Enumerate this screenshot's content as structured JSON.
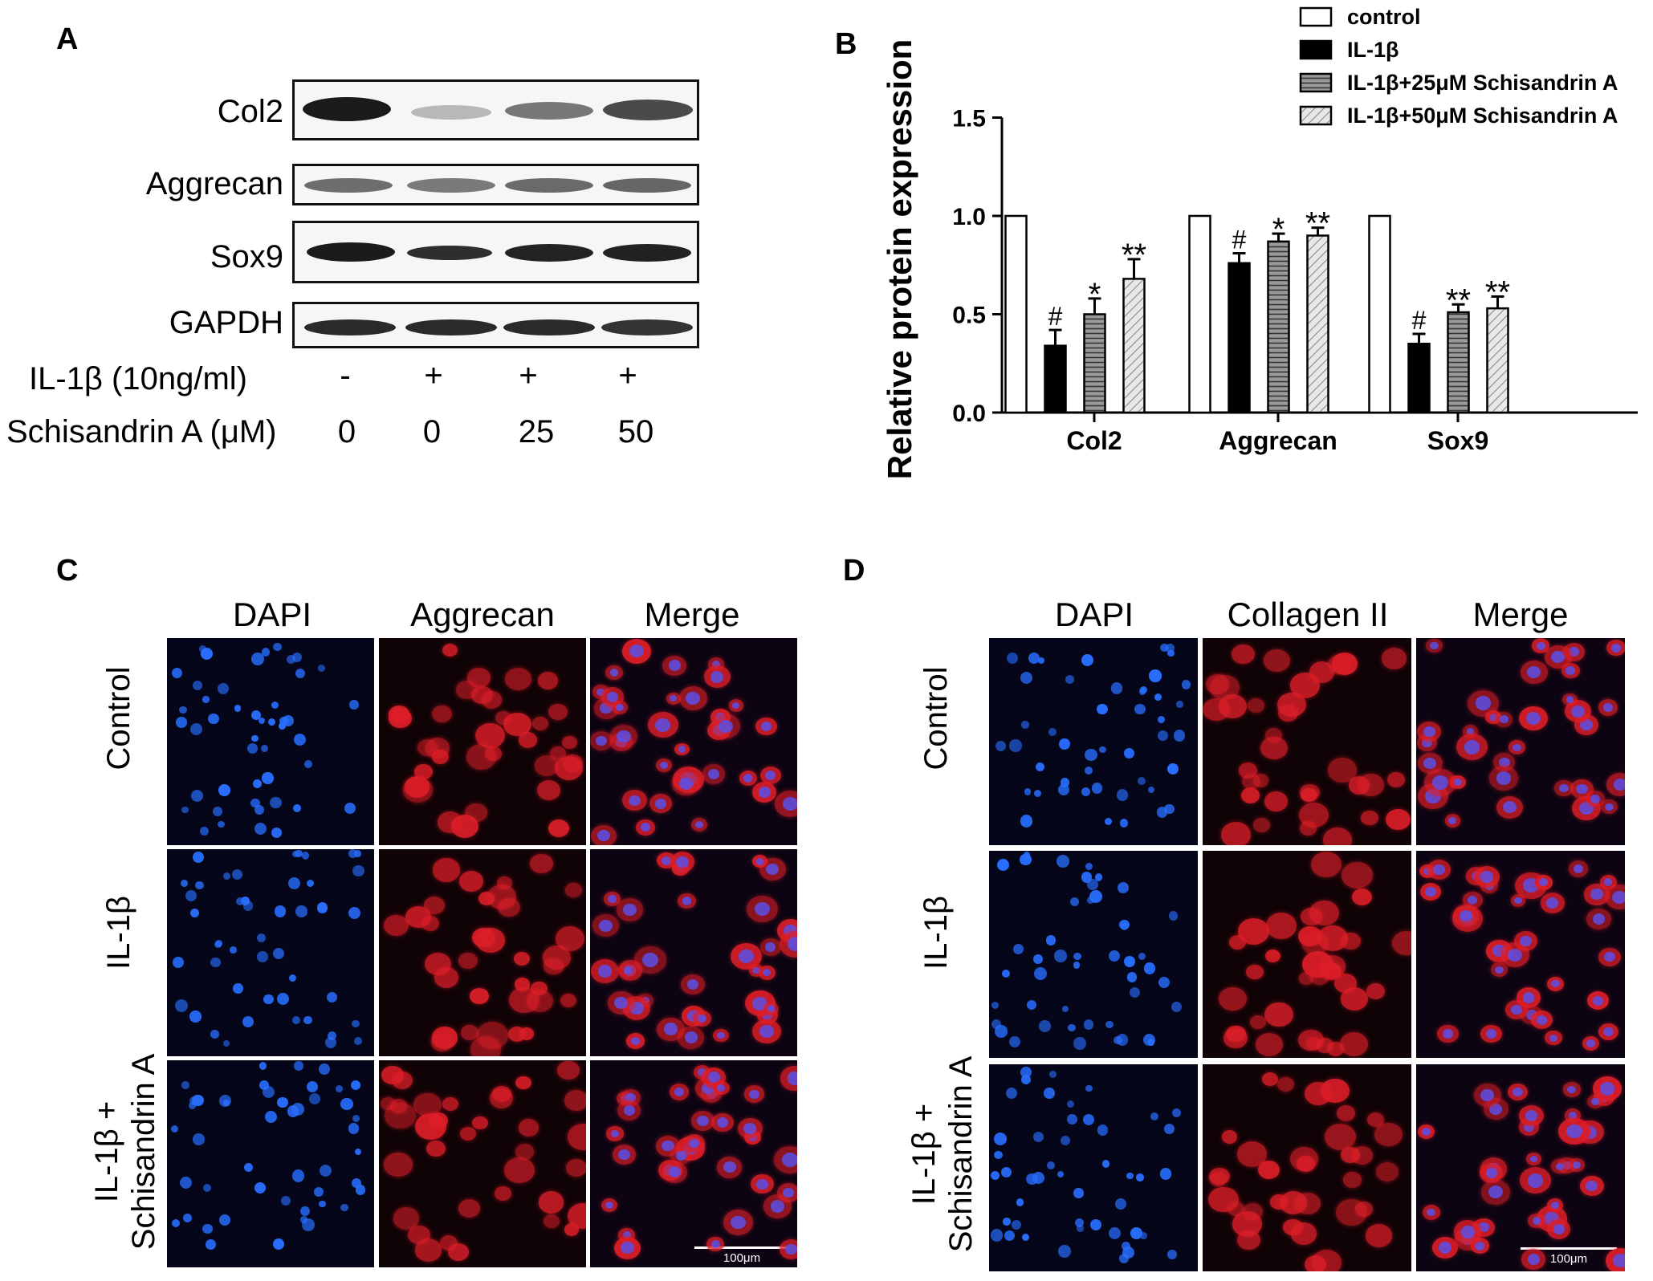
{
  "panels": {
    "a": {
      "letter": "A",
      "proteins": [
        "Col2",
        "Aggrecan",
        "Sox9",
        "GAPDH"
      ],
      "treatments": [
        {
          "label": "IL-1β (10ng/ml)",
          "values": [
            "-",
            "+",
            "+",
            "+"
          ]
        },
        {
          "label": "Schisandrin A (μM)",
          "values": [
            "0",
            "0",
            "25",
            "50"
          ]
        }
      ]
    },
    "b": {
      "letter": "B"
    },
    "c": {
      "letter": "C",
      "columns": [
        "DAPI",
        "Aggrecan",
        "Merge"
      ],
      "rows": [
        "Control",
        "IL-1β",
        "IL-1β +\nSchisandrin A"
      ],
      "scale": "100μm"
    },
    "d": {
      "letter": "D",
      "columns": [
        "DAPI",
        "Collagen II",
        "Merge"
      ],
      "rows": [
        "Control",
        "IL-1β",
        "IL-1β +\nSchisandrin A"
      ],
      "scale": "100μm"
    }
  },
  "chart_data": {
    "type": "bar",
    "categories": [
      "Col2",
      "Aggrecan",
      "Sox9"
    ],
    "ylabel": "Relative protein expression",
    "xlabel": "",
    "ylim": [
      0,
      1.5
    ],
    "yticks": [
      "0.0",
      "0.5",
      "1.0",
      "1.5"
    ],
    "legend_position": "top-right",
    "series": [
      {
        "name": "control",
        "values": [
          1.0,
          1.0,
          1.0
        ],
        "errors": [
          0,
          0,
          0
        ],
        "marks": [
          "",
          "",
          ""
        ],
        "fill": "white"
      },
      {
        "name": "IL-1β",
        "values": [
          0.34,
          0.76,
          0.35
        ],
        "errors": [
          0.08,
          0.05,
          0.05
        ],
        "marks": [
          "#",
          "#",
          "#"
        ],
        "fill": "black"
      },
      {
        "name": "IL-1β+25μM Schisandrin A",
        "values": [
          0.5,
          0.87,
          0.51
        ],
        "errors": [
          0.08,
          0.04,
          0.04
        ],
        "marks": [
          "*",
          "*",
          "**"
        ],
        "fill": "hlines"
      },
      {
        "name": "IL-1β+50μM Schisandrin A",
        "values": [
          0.68,
          0.9,
          0.53
        ],
        "errors": [
          0.1,
          0.04,
          0.06
        ],
        "marks": [
          "**",
          "**",
          "**"
        ],
        "fill": "diag"
      }
    ]
  }
}
